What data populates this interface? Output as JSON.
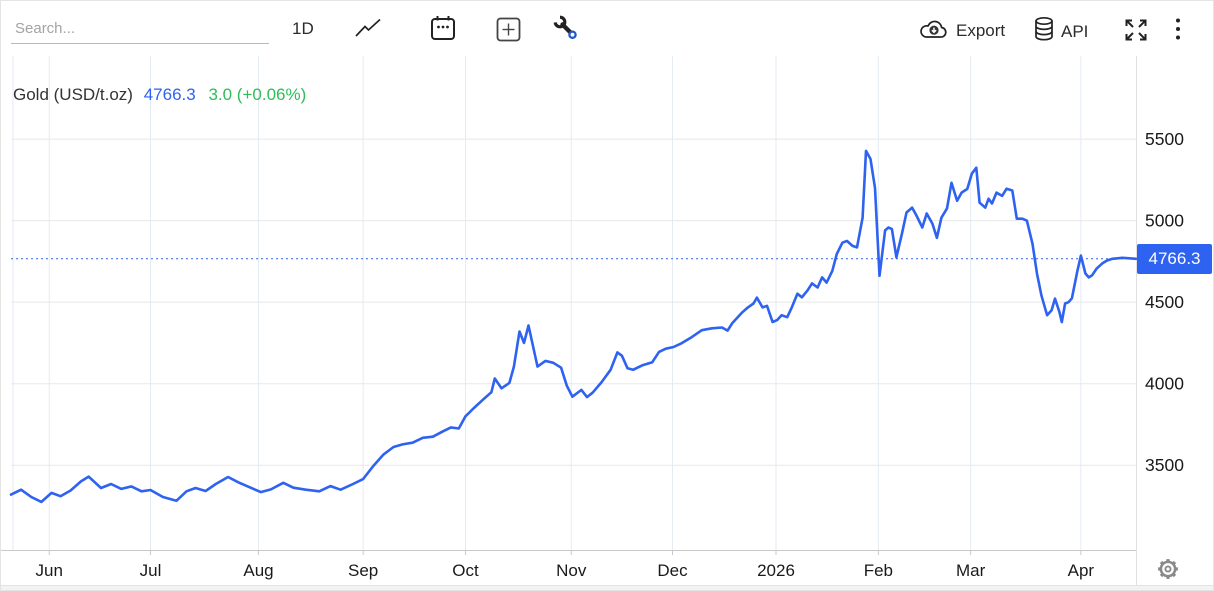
{
  "toolbar": {
    "search_placeholder": "Search...",
    "interval_label": "1D",
    "export_label": "Export",
    "api_label": "API"
  },
  "legend": {
    "series_name": "Gold (USD/t.oz)",
    "last_price": "4766.3",
    "change": "3.0 (+0.06%)"
  },
  "price_badge": {
    "label": "4766.3"
  },
  "colors": {
    "accent": "#2e62f0",
    "positive": "#2ebd59",
    "grid_horizontal": "#e8e8e8",
    "grid_vertical": "#e3ebf5",
    "axis_line": "#c9c9c9",
    "axis_text": "#1a1a1a",
    "icon": "#2b2b2b",
    "gear": "#8a8a8a"
  },
  "chart_data": {
    "type": "line",
    "title": "Gold (USD/t.oz)",
    "current_price": 4766.3,
    "change_abs": 3.0,
    "change_pct": "+0.06%",
    "ylim": [
      2980,
      6010
    ],
    "yticks": [
      3500,
      4000,
      4500,
      5000,
      5500
    ],
    "grid": true,
    "legend_position": "top-left",
    "xticks": [
      {
        "label": "Jun",
        "f": 0.034
      },
      {
        "label": "Jul",
        "f": 0.124
      },
      {
        "label": "Aug",
        "f": 0.22
      },
      {
        "label": "Sep",
        "f": 0.313
      },
      {
        "label": "Oct",
        "f": 0.404
      },
      {
        "label": "Nov",
        "f": 0.498
      },
      {
        "label": "Dec",
        "f": 0.588
      },
      {
        "label": "2026",
        "f": 0.68
      },
      {
        "label": "Feb",
        "f": 0.771
      },
      {
        "label": "Mar",
        "f": 0.853
      },
      {
        "label": "Apr",
        "f": 0.951
      }
    ],
    "series": [
      {
        "name": "Gold (USD/t.oz)",
        "points": [
          [
            0.0,
            3320
          ],
          [
            0.009,
            3350
          ],
          [
            0.018,
            3305
          ],
          [
            0.027,
            3275
          ],
          [
            0.036,
            3330
          ],
          [
            0.044,
            3310
          ],
          [
            0.053,
            3345
          ],
          [
            0.062,
            3400
          ],
          [
            0.069,
            3430
          ],
          [
            0.08,
            3360
          ],
          [
            0.089,
            3385
          ],
          [
            0.098,
            3355
          ],
          [
            0.107,
            3370
          ],
          [
            0.116,
            3340
          ],
          [
            0.124,
            3348
          ],
          [
            0.135,
            3305
          ],
          [
            0.147,
            3282
          ],
          [
            0.156,
            3340
          ],
          [
            0.164,
            3360
          ],
          [
            0.173,
            3342
          ],
          [
            0.182,
            3385
          ],
          [
            0.193,
            3428
          ],
          [
            0.202,
            3395
          ],
          [
            0.212,
            3365
          ],
          [
            0.222,
            3335
          ],
          [
            0.231,
            3352
          ],
          [
            0.242,
            3392
          ],
          [
            0.251,
            3362
          ],
          [
            0.262,
            3350
          ],
          [
            0.274,
            3340
          ],
          [
            0.284,
            3372
          ],
          [
            0.293,
            3350
          ],
          [
            0.304,
            3385
          ],
          [
            0.313,
            3415
          ],
          [
            0.322,
            3495
          ],
          [
            0.331,
            3565
          ],
          [
            0.34,
            3612
          ],
          [
            0.348,
            3628
          ],
          [
            0.357,
            3638
          ],
          [
            0.366,
            3668
          ],
          [
            0.375,
            3675
          ],
          [
            0.384,
            3708
          ],
          [
            0.391,
            3732
          ],
          [
            0.398,
            3725
          ],
          [
            0.404,
            3800
          ],
          [
            0.411,
            3848
          ],
          [
            0.42,
            3905
          ],
          [
            0.427,
            3948
          ],
          [
            0.43,
            4032
          ],
          [
            0.436,
            3972
          ],
          [
            0.443,
            4005
          ],
          [
            0.447,
            4105
          ],
          [
            0.452,
            4320
          ],
          [
            0.456,
            4250
          ],
          [
            0.46,
            4357
          ],
          [
            0.468,
            4105
          ],
          [
            0.475,
            4140
          ],
          [
            0.482,
            4128
          ],
          [
            0.489,
            4098
          ],
          [
            0.494,
            3988
          ],
          [
            0.499,
            3920
          ],
          [
            0.507,
            3962
          ],
          [
            0.512,
            3918
          ],
          [
            0.517,
            3945
          ],
          [
            0.525,
            4010
          ],
          [
            0.533,
            4085
          ],
          [
            0.539,
            4192
          ],
          [
            0.543,
            4172
          ],
          [
            0.548,
            4095
          ],
          [
            0.553,
            4085
          ],
          [
            0.561,
            4112
          ],
          [
            0.57,
            4132
          ],
          [
            0.576,
            4195
          ],
          [
            0.582,
            4215
          ],
          [
            0.589,
            4225
          ],
          [
            0.596,
            4248
          ],
          [
            0.605,
            4285
          ],
          [
            0.614,
            4328
          ],
          [
            0.623,
            4340
          ],
          [
            0.632,
            4345
          ],
          [
            0.637,
            4326
          ],
          [
            0.641,
            4370
          ],
          [
            0.65,
            4438
          ],
          [
            0.655,
            4468
          ],
          [
            0.66,
            4492
          ],
          [
            0.663,
            4528
          ],
          [
            0.668,
            4468
          ],
          [
            0.672,
            4478
          ],
          [
            0.677,
            4378
          ],
          [
            0.681,
            4390
          ],
          [
            0.685,
            4420
          ],
          [
            0.69,
            4408
          ],
          [
            0.694,
            4468
          ],
          [
            0.699,
            4552
          ],
          [
            0.703,
            4530
          ],
          [
            0.708,
            4572
          ],
          [
            0.712,
            4615
          ],
          [
            0.717,
            4590
          ],
          [
            0.721,
            4652
          ],
          [
            0.725,
            4620
          ],
          [
            0.73,
            4692
          ],
          [
            0.734,
            4796
          ],
          [
            0.739,
            4865
          ],
          [
            0.743,
            4876
          ],
          [
            0.748,
            4845
          ],
          [
            0.752,
            4836
          ],
          [
            0.757,
            5018
          ],
          [
            0.76,
            5428
          ],
          [
            0.764,
            5378
          ],
          [
            0.768,
            5200
          ],
          [
            0.772,
            4662
          ],
          [
            0.777,
            4940
          ],
          [
            0.78,
            4958
          ],
          [
            0.783,
            4948
          ],
          [
            0.787,
            4775
          ],
          [
            0.792,
            4922
          ],
          [
            0.796,
            5050
          ],
          [
            0.801,
            5080
          ],
          [
            0.805,
            5030
          ],
          [
            0.81,
            4958
          ],
          [
            0.814,
            5044
          ],
          [
            0.819,
            4982
          ],
          [
            0.823,
            4895
          ],
          [
            0.827,
            5018
          ],
          [
            0.832,
            5075
          ],
          [
            0.836,
            5232
          ],
          [
            0.841,
            5122
          ],
          [
            0.845,
            5172
          ],
          [
            0.85,
            5195
          ],
          [
            0.854,
            5288
          ],
          [
            0.858,
            5325
          ],
          [
            0.861,
            5110
          ],
          [
            0.866,
            5080
          ],
          [
            0.869,
            5135
          ],
          [
            0.872,
            5105
          ],
          [
            0.876,
            5172
          ],
          [
            0.881,
            5152
          ],
          [
            0.885,
            5196
          ],
          [
            0.89,
            5185
          ],
          [
            0.894,
            5012
          ],
          [
            0.899,
            5012
          ],
          [
            0.903,
            5000
          ],
          [
            0.908,
            4858
          ],
          [
            0.912,
            4675
          ],
          [
            0.916,
            4540
          ],
          [
            0.921,
            4420
          ],
          [
            0.925,
            4450
          ],
          [
            0.928,
            4522
          ],
          [
            0.932,
            4438
          ],
          [
            0.934,
            4378
          ],
          [
            0.937,
            4492
          ],
          [
            0.94,
            4500
          ],
          [
            0.943,
            4524
          ],
          [
            0.948,
            4695
          ],
          [
            0.951,
            4786
          ],
          [
            0.955,
            4676
          ],
          [
            0.958,
            4652
          ],
          [
            0.961,
            4665
          ],
          [
            0.965,
            4706
          ],
          [
            0.97,
            4738
          ],
          [
            0.974,
            4755
          ],
          [
            0.979,
            4766
          ],
          [
            0.988,
            4772
          ],
          [
            1.0,
            4766.3
          ]
        ]
      }
    ]
  }
}
